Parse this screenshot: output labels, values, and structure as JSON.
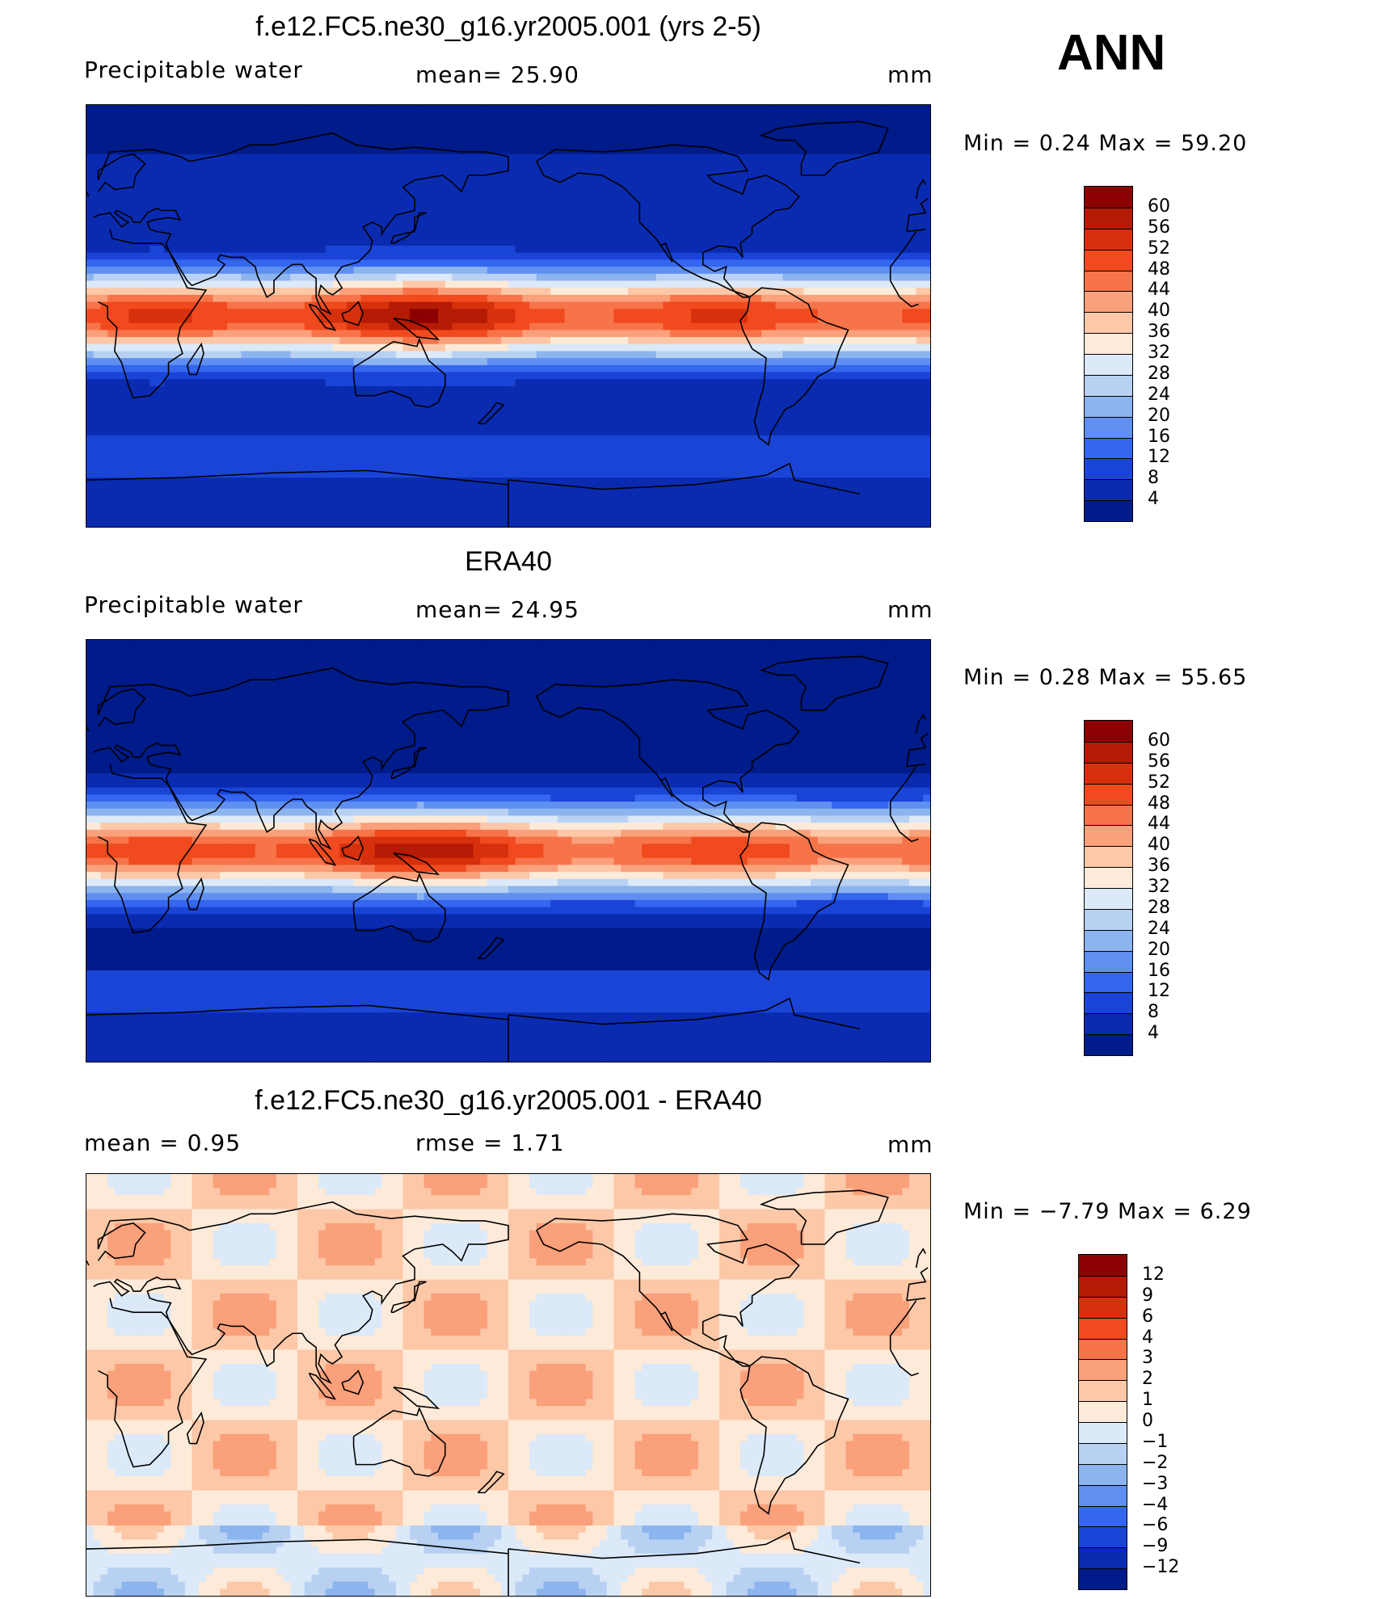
{
  "season": "ANN",
  "panels": [
    {
      "title": "f.e12.FC5.ne30_g16.yr2005.001 (yrs 2-5)",
      "left_label": "Precipitable  water",
      "mid_label": "mean=   25.90",
      "unit": "mm",
      "minmax": "Min  =     0.24  Max  =     59.20",
      "colorbar_labels": [
        "60",
        "56",
        "52",
        "48",
        "44",
        "40",
        "36",
        "32",
        "28",
        "24",
        "20",
        "16",
        "12",
        "8",
        "4"
      ],
      "colorbar_colors": [
        "#8b0000",
        "#b51a05",
        "#d6300d",
        "#f04a1e",
        "#f7744a",
        "#faa07a",
        "#fcc8a8",
        "#feead8",
        "#dbe9f8",
        "#b8d1f2",
        "#8cb4ee",
        "#5f8ff0",
        "#3566f0",
        "#1a44d6",
        "#0a2bb0",
        "#001b8a"
      ],
      "map_palette": "abs"
    },
    {
      "title": "ERA40",
      "left_label": "Precipitable  water",
      "mid_label": "mean=   24.95",
      "unit": "mm",
      "minmax": "Min  =     0.28  Max  =     55.65",
      "colorbar_labels": [
        "60",
        "56",
        "52",
        "48",
        "44",
        "40",
        "36",
        "32",
        "28",
        "24",
        "20",
        "16",
        "12",
        "8",
        "4"
      ],
      "colorbar_colors": [
        "#8b0000",
        "#b51a05",
        "#d6300d",
        "#f04a1e",
        "#f7744a",
        "#faa07a",
        "#fcc8a8",
        "#feead8",
        "#dbe9f8",
        "#b8d1f2",
        "#8cb4ee",
        "#5f8ff0",
        "#3566f0",
        "#1a44d6",
        "#0a2bb0",
        "#001b8a"
      ],
      "map_palette": "abs"
    },
    {
      "title": "f.e12.FC5.ne30_g16.yr2005.001 - ERA40",
      "left_label": "mean  =     0.95",
      "mid_label": "rmse  =     1.71",
      "unit": "mm",
      "minmax": "Min  =   −7.79  Max  =      6.29",
      "colorbar_labels": [
        "12",
        "9",
        "6",
        "4",
        "3",
        "2",
        "1",
        "0",
        "−1",
        "−2",
        "−3",
        "−4",
        "−6",
        "−9",
        "−12"
      ],
      "colorbar_colors": [
        "#8b0000",
        "#b51a05",
        "#d6300d",
        "#f04a1e",
        "#f7744a",
        "#faa07a",
        "#fcc8a8",
        "#feead8",
        "#dbe9f8",
        "#b8d1f2",
        "#8cb4ee",
        "#5f8ff0",
        "#3566f0",
        "#1a44d6",
        "#0a2bb0",
        "#001b8a"
      ],
      "map_palette": "diff"
    }
  ]
}
